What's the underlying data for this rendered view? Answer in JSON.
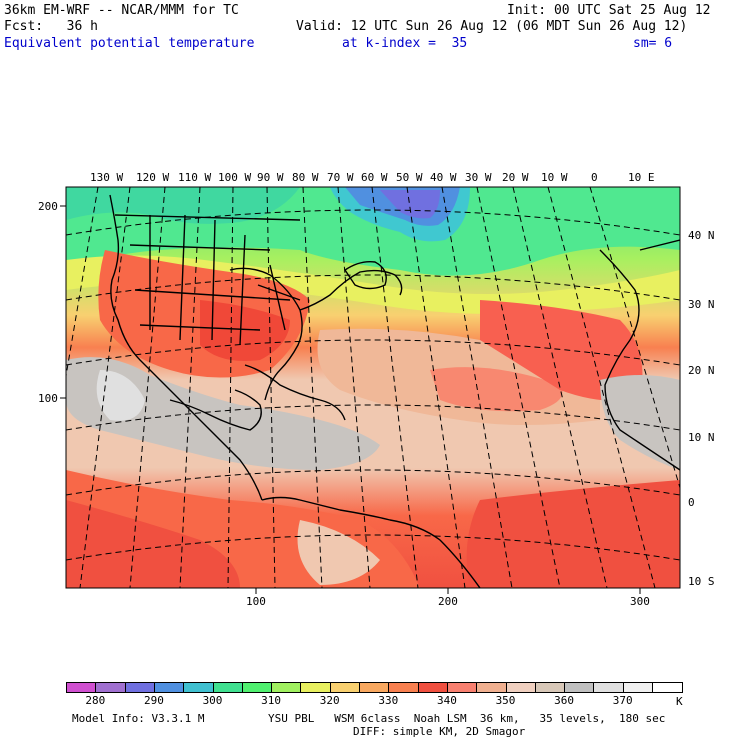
{
  "header": {
    "line1_left": "36km EM-WRF -- NCAR/MMM for TC",
    "line1_right": "Init: 00 UTC Sat 25 Aug 12",
    "line2_left": "Fcst:   36 h",
    "line2_right": "Valid: 12 UTC Sun 26 Aug 12 (06 MDT Sun 26 Aug 12)",
    "field_name": "Equivalent potential temperature",
    "level": "at k-index =  35",
    "smoothing": "sm= 6"
  },
  "map": {
    "top_lon_labels": [
      "130 W",
      "120 W",
      "110 W",
      "100 W",
      "90 W",
      "80 W",
      "70 W",
      "60 W",
      "50 W",
      "40 W",
      "30 W",
      "20 W",
      "10 W",
      "0",
      "10 E"
    ],
    "right_lat_labels": [
      "40 N",
      "30 N",
      "20 N",
      "10 N",
      "0",
      "10 S"
    ],
    "left_grid_labels": [
      "200",
      "100"
    ],
    "bottom_grid_labels": [
      "100",
      "200",
      "300"
    ]
  },
  "colorbar": {
    "unit": "K",
    "labels": [
      "280",
      "290",
      "300",
      "310",
      "320",
      "330",
      "340",
      "350",
      "360",
      "370"
    ],
    "colors": [
      "#d050d0",
      "#a070d0",
      "#7070e0",
      "#5090e0",
      "#40c0d0",
      "#40e090",
      "#50f070",
      "#a0f060",
      "#e8f060",
      "#f8d070",
      "#f8a860",
      "#f88050",
      "#f05040",
      "#f88070",
      "#f0b090",
      "#f0d0c0",
      "#d8c8b8",
      "#c0c0c0",
      "#e0e0e0",
      "#f0f0f0",
      "#ffffff"
    ]
  },
  "footer": {
    "model_info": "Model Info: V3.3.1 M",
    "physics": "YSU PBL   WSM 6class  Noah LSM  36 km,   35 levels,  180 sec",
    "diffusion": "DIFF: simple KM, 2D Smagor"
  }
}
